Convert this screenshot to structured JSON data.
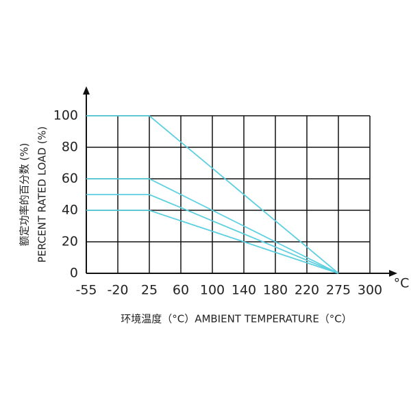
{
  "chart_data": {
    "type": "line",
    "y_label_cn": "额定功率的百分数 (%)",
    "y_label": "PERCENT RATED LOAD (%)",
    "x_label": "环境温度（°C）AMBIENT TEMPERATURE（°C）",
    "x_unit": "°C",
    "categories": [
      "-55",
      "-20",
      "25",
      "60",
      "100",
      "140",
      "180",
      "220",
      "275",
      "300"
    ],
    "series": [
      {
        "color": "#5ccfe0",
        "values": [
          100,
          100,
          100,
          83.3,
          66.7,
          50,
          33.3,
          16.7,
          0,
          null
        ]
      },
      {
        "color": "#5ccfe0",
        "values": [
          60,
          60,
          60,
          50,
          40,
          30,
          20,
          10,
          0,
          null
        ]
      },
      {
        "color": "#5ccfe0",
        "values": [
          50,
          50,
          50,
          41.7,
          33.3,
          25,
          16.7,
          8.3,
          0,
          null
        ]
      },
      {
        "color": "#5ccfe0",
        "values": [
          40,
          40,
          40,
          33.3,
          26.7,
          20,
          13.3,
          6.7,
          0,
          null
        ]
      }
    ],
    "ylim": [
      0,
      100
    ],
    "yticks": [
      0,
      20,
      40,
      60,
      80,
      100
    ],
    "grid": true
  }
}
